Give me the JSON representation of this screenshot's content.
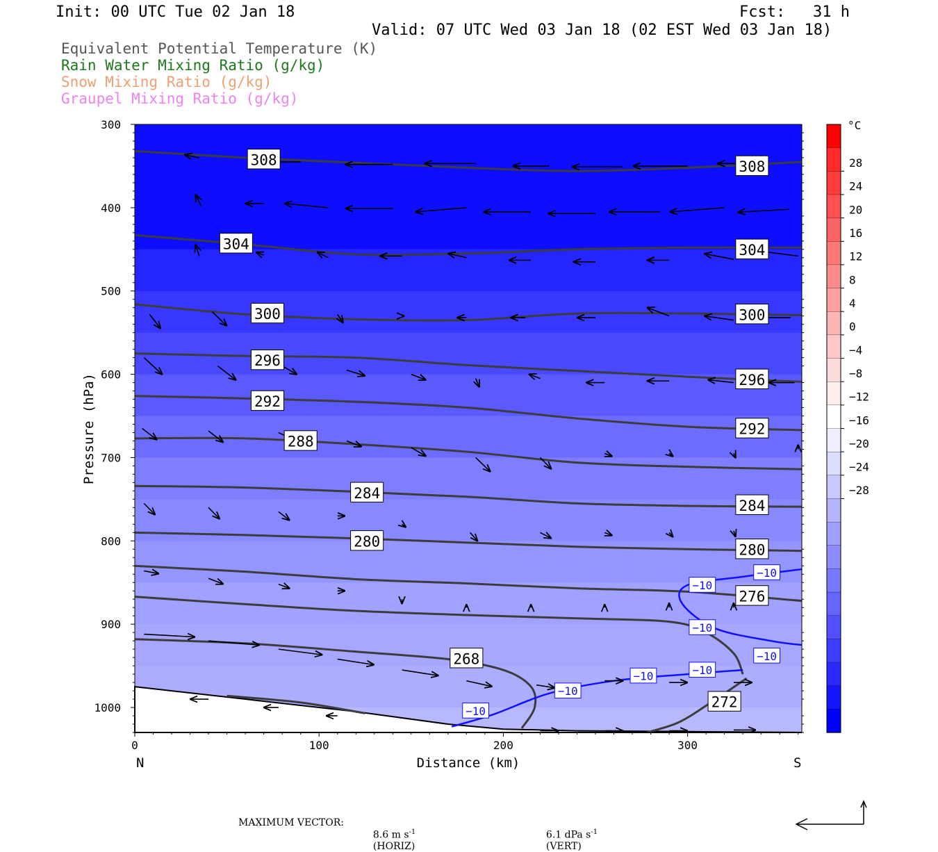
{
  "header": {
    "init": "Init: 00 UTC Tue 02 Jan 18",
    "fcst": "Fcst:   31 h",
    "valid": "Valid: 07 UTC Wed 03 Jan 18 (02 EST Wed 03 Jan 18)"
  },
  "legend": [
    {
      "text": "Equivalent Potential Temperature (K)",
      "color": "#555555"
    },
    {
      "text": "Rain Water Mixing Ratio (g/kg)",
      "color": "#1a7a1a"
    },
    {
      "text": "Snow Mixing Ratio (g/kg)",
      "color": "#f0a070"
    },
    {
      "text": "Graupel Mixing Ratio (g/kg)",
      "color": "#ee82ee"
    }
  ],
  "footer": {
    "max_vector_label": "MAXIMUM VECTOR:",
    "horiz": "8.6 m s",
    "horiz_unit": "(HORIZ)",
    "vert": "6.1 dPa s",
    "vert_unit": "(VERT)",
    "exponent": "-1"
  },
  "chart_data": {
    "type": "contour-cross-section",
    "xlabel": "Distance (km)",
    "ylabel": "Pressure (hPa)",
    "x_left_label": "N",
    "x_right_label": "S",
    "xlim": [
      0,
      362
    ],
    "ylim": [
      1030,
      300
    ],
    "x_ticks": [
      0,
      100,
      200,
      300
    ],
    "y_ticks": [
      300,
      400,
      500,
      600,
      700,
      800,
      900,
      1000
    ],
    "colorbar": {
      "unit": "°C",
      "labels": [
        "28",
        "24",
        "20",
        "16",
        "12",
        "8",
        "4",
        "0",
        "−4",
        "−8",
        "−12",
        "−16",
        "−20",
        "−24",
        "−28"
      ],
      "colors": [
        "#ff0000",
        "#ff2a2a",
        "#ff3c3c",
        "#ff5050",
        "#ff6464",
        "#ff7878",
        "#ff8c8c",
        "#ffa0a0",
        "#ffb4b4",
        "#ffc8c8",
        "#ffdcdc",
        "#ffeeee",
        "#ffffff",
        "#eeeeff",
        "#dcdcff",
        "#c8c8ff",
        "#b4b4ff",
        "#a0a0ff",
        "#8c8cff",
        "#7878ff",
        "#6464ff",
        "#5050ff",
        "#3c3cff",
        "#2828ff",
        "#1414ff",
        "#0000ff"
      ]
    },
    "theta_e_contours": [
      {
        "level": "308",
        "points": [
          [
            0,
            332
          ],
          [
            60,
            340
          ],
          [
            120,
            346
          ],
          [
            180,
            352
          ],
          [
            240,
            356
          ],
          [
            300,
            352
          ],
          [
            362,
            345
          ]
        ]
      },
      {
        "level": "304",
        "points": [
          [
            0,
            433
          ],
          [
            60,
            444
          ],
          [
            120,
            456
          ],
          [
            180,
            455
          ],
          [
            240,
            450
          ],
          [
            300,
            448
          ],
          [
            362,
            448
          ]
        ]
      },
      {
        "level": "300",
        "points": [
          [
            0,
            516
          ],
          [
            60,
            528
          ],
          [
            120,
            534
          ],
          [
            180,
            535
          ],
          [
            240,
            527
          ],
          [
            300,
            527
          ],
          [
            362,
            529
          ]
        ]
      },
      {
        "level": "296",
        "points": [
          [
            0,
            575
          ],
          [
            60,
            578
          ],
          [
            120,
            580
          ],
          [
            180,
            589
          ],
          [
            240,
            596
          ],
          [
            300,
            603
          ],
          [
            362,
            609
          ]
        ]
      },
      {
        "level": "292",
        "points": [
          [
            0,
            626
          ],
          [
            60,
            629
          ],
          [
            120,
            633
          ],
          [
            180,
            640
          ],
          [
            240,
            653
          ],
          [
            300,
            663
          ],
          [
            362,
            667
          ]
        ]
      },
      {
        "level": "288",
        "points": [
          [
            0,
            677
          ],
          [
            60,
            677
          ],
          [
            120,
            684
          ],
          [
            180,
            693
          ],
          [
            240,
            706
          ],
          [
            300,
            711
          ],
          [
            362,
            714
          ]
        ]
      },
      {
        "level": "284",
        "points": [
          [
            0,
            734
          ],
          [
            60,
            736
          ],
          [
            120,
            741
          ],
          [
            180,
            747
          ],
          [
            240,
            755
          ],
          [
            300,
            758
          ],
          [
            362,
            759
          ]
        ]
      },
      {
        "level": "280",
        "points": [
          [
            0,
            790
          ],
          [
            60,
            793
          ],
          [
            120,
            797
          ],
          [
            180,
            802
          ],
          [
            240,
            807
          ],
          [
            300,
            810
          ],
          [
            362,
            812
          ]
        ]
      },
      {
        "level": "276",
        "points": [
          [
            0,
            830
          ],
          [
            60,
            837
          ],
          [
            120,
            846
          ],
          [
            180,
            851
          ],
          [
            240,
            857
          ],
          [
            300,
            861
          ],
          [
            362,
            872
          ]
        ]
      },
      {
        "level": "",
        "points": [
          [
            0,
            867
          ],
          [
            60,
            876
          ],
          [
            120,
            884
          ],
          [
            180,
            889
          ],
          [
            240,
            893
          ],
          [
            290,
            897
          ],
          [
            310,
            910
          ],
          [
            325,
            935
          ],
          [
            330,
            960
          ]
        ]
      },
      {
        "level": "268",
        "points": [
          [
            0,
            918
          ],
          [
            60,
            923
          ],
          [
            120,
            933
          ],
          [
            170,
            942
          ],
          [
            200,
            955
          ],
          [
            215,
            975
          ],
          [
            217,
            1000
          ],
          [
            210,
            1025
          ]
        ]
      },
      {
        "level": "272",
        "points": [
          [
            332,
            965
          ],
          [
            312,
            995
          ],
          [
            295,
            1018
          ],
          [
            278,
            1030
          ]
        ]
      },
      {
        "level": "",
        "points": [
          [
            50,
            986
          ],
          [
            90,
            994
          ],
          [
            125,
            1007
          ]
        ]
      }
    ],
    "temperature_contours": [
      {
        "level": "−10",
        "points": [
          [
            172,
            1023
          ],
          [
            195,
            1008
          ],
          [
            225,
            983
          ],
          [
            260,
            968
          ],
          [
            300,
            960
          ],
          [
            330,
            955
          ]
        ]
      },
      {
        "level": "−10",
        "points": [
          [
            362,
            834
          ],
          [
            330,
            843
          ],
          [
            300,
            853
          ],
          [
            297,
            875
          ],
          [
            315,
            905
          ],
          [
            345,
            920
          ],
          [
            362,
            925
          ]
        ]
      }
    ],
    "temperature_shading_c": [
      {
        "p": 300,
        "t": -37
      },
      {
        "p": 450,
        "t": -33
      },
      {
        "p": 500,
        "t": -30
      },
      {
        "p": 550,
        "t": -27
      },
      {
        "p": 600,
        "t": -24
      },
      {
        "p": 650,
        "t": -21
      },
      {
        "p": 700,
        "t": -18
      },
      {
        "p": 750,
        "t": -16
      },
      {
        "p": 800,
        "t": -14
      },
      {
        "p": 850,
        "t": -12
      },
      {
        "p": 900,
        "t": -11
      },
      {
        "p": 950,
        "t": -10
      },
      {
        "p": 1000,
        "t": -8
      },
      {
        "p": 1030,
        "t": -6
      }
    ],
    "terrain_km_hpa": [
      [
        0,
        975
      ],
      [
        60,
        990
      ],
      [
        120,
        1005
      ],
      [
        170,
        1020
      ],
      [
        200,
        1026
      ],
      [
        240,
        1028
      ],
      [
        300,
        1029
      ],
      [
        362,
        1030
      ]
    ],
    "wind_vectors": [
      {
        "x": 35,
        "p": 340,
        "u": -8,
        "w": 2
      },
      {
        "x": 90,
        "p": 345,
        "u": -20,
        "w": 0
      },
      {
        "x": 140,
        "p": 348,
        "u": -26,
        "w": 0
      },
      {
        "x": 185,
        "p": 347,
        "u": -28,
        "w": 0
      },
      {
        "x": 225,
        "p": 350,
        "u": -20,
        "w": 0
      },
      {
        "x": 265,
        "p": 351,
        "u": -28,
        "w": 0
      },
      {
        "x": 300,
        "p": 350,
        "u": -30,
        "w": 0
      },
      {
        "x": 340,
        "p": 347,
        "u": -24,
        "w": 0
      },
      {
        "x": 36,
        "p": 398,
        "u": -3,
        "w": 8
      },
      {
        "x": 70,
        "p": 395,
        "u": -10,
        "w": 0
      },
      {
        "x": 105,
        "p": 400,
        "u": -24,
        "w": 3
      },
      {
        "x": 140,
        "p": 401,
        "u": -26,
        "w": 0
      },
      {
        "x": 180,
        "p": 400,
        "u": -28,
        "w": -3
      },
      {
        "x": 215,
        "p": 405,
        "u": -26,
        "w": 0
      },
      {
        "x": 250,
        "p": 407,
        "u": -26,
        "w": 0
      },
      {
        "x": 285,
        "p": 405,
        "u": -28,
        "w": 0
      },
      {
        "x": 320,
        "p": 400,
        "u": -30,
        "w": -3
      },
      {
        "x": 355,
        "p": 402,
        "u": -28,
        "w": -2
      },
      {
        "x": 35,
        "p": 458,
        "u": -2,
        "w": 8
      },
      {
        "x": 70,
        "p": 457,
        "u": -4,
        "w": 2
      },
      {
        "x": 105,
        "p": 460,
        "u": -6,
        "w": 4
      },
      {
        "x": 145,
        "p": 458,
        "u": -12,
        "w": 0
      },
      {
        "x": 180,
        "p": 460,
        "u": -10,
        "w": 3
      },
      {
        "x": 215,
        "p": 463,
        "u": -12,
        "w": 0
      },
      {
        "x": 250,
        "p": 465,
        "u": -12,
        "w": 0
      },
      {
        "x": 290,
        "p": 463,
        "u": -12,
        "w": 0
      },
      {
        "x": 325,
        "p": 462,
        "u": -16,
        "w": 4
      },
      {
        "x": 360,
        "p": 458,
        "u": -24,
        "w": 4
      },
      {
        "x": 8,
        "p": 528,
        "u": 6,
        "w": -10
      },
      {
        "x": 42,
        "p": 525,
        "u": 8,
        "w": -10
      },
      {
        "x": 110,
        "p": 528,
        "u": 3,
        "w": -6
      },
      {
        "x": 145,
        "p": 530,
        "u": 1,
        "w": 0
      },
      {
        "x": 180,
        "p": 532,
        "u": -5,
        "w": 0
      },
      {
        "x": 212,
        "p": 532,
        "u": -8,
        "w": 0
      },
      {
        "x": 250,
        "p": 532,
        "u": -10,
        "w": 0
      },
      {
        "x": 290,
        "p": 530,
        "u": -12,
        "w": 6
      },
      {
        "x": 325,
        "p": 535,
        "u": -16,
        "w": 3
      },
      {
        "x": 356,
        "p": 532,
        "u": -18,
        "w": 0
      },
      {
        "x": 5,
        "p": 580,
        "u": 10,
        "w": -12
      },
      {
        "x": 45,
        "p": 590,
        "u": 10,
        "w": -10
      },
      {
        "x": 80,
        "p": 590,
        "u": 8,
        "w": -6
      },
      {
        "x": 115,
        "p": 595,
        "u": 10,
        "w": -4
      },
      {
        "x": 150,
        "p": 600,
        "u": 8,
        "w": -4
      },
      {
        "x": 185,
        "p": 605,
        "u": 2,
        "w": -6
      },
      {
        "x": 220,
        "p": 605,
        "u": -6,
        "w": 3
      },
      {
        "x": 255,
        "p": 610,
        "u": -10,
        "w": 0
      },
      {
        "x": 290,
        "p": 608,
        "u": -12,
        "w": 0
      },
      {
        "x": 325,
        "p": 610,
        "u": -14,
        "w": 2
      },
      {
        "x": 358,
        "p": 610,
        "u": -14,
        "w": 0
      },
      {
        "x": 4,
        "p": 665,
        "u": 8,
        "w": -8
      },
      {
        "x": 40,
        "p": 668,
        "u": 8,
        "w": -8
      },
      {
        "x": 78,
        "p": 670,
        "u": 10,
        "w": -6
      },
      {
        "x": 115,
        "p": 680,
        "u": 8,
        "w": -4
      },
      {
        "x": 150,
        "p": 688,
        "u": 8,
        "w": -6
      },
      {
        "x": 185,
        "p": 700,
        "u": 8,
        "w": -10
      },
      {
        "x": 220,
        "p": 700,
        "u": 6,
        "w": -8
      },
      {
        "x": 255,
        "p": 695,
        "u": 4,
        "w": -2
      },
      {
        "x": 290,
        "p": 695,
        "u": 2,
        "w": -2
      },
      {
        "x": 325,
        "p": 695,
        "u": 1,
        "w": -3
      },
      {
        "x": 360,
        "p": 690,
        "u": 0,
        "w": 3
      },
      {
        "x": 5,
        "p": 755,
        "u": 6,
        "w": -8
      },
      {
        "x": 40,
        "p": 760,
        "u": 6,
        "w": -8
      },
      {
        "x": 78,
        "p": 765,
        "u": 6,
        "w": -6
      },
      {
        "x": 110,
        "p": 770,
        "u": 4,
        "w": 0
      },
      {
        "x": 145,
        "p": 780,
        "u": 2,
        "w": -2
      },
      {
        "x": 182,
        "p": 790,
        "u": 4,
        "w": -6
      },
      {
        "x": 220,
        "p": 790,
        "u": 6,
        "w": -4
      },
      {
        "x": 255,
        "p": 790,
        "u": 4,
        "w": -2
      },
      {
        "x": 290,
        "p": 790,
        "u": 2,
        "w": -3
      },
      {
        "x": 325,
        "p": 788,
        "u": 1,
        "w": -4
      },
      {
        "x": 5,
        "p": 836,
        "u": 8,
        "w": -2
      },
      {
        "x": 40,
        "p": 845,
        "u": 8,
        "w": -4
      },
      {
        "x": 78,
        "p": 852,
        "u": 6,
        "w": -3
      },
      {
        "x": 110,
        "p": 860,
        "u": 4,
        "w": 0
      },
      {
        "x": 145,
        "p": 870,
        "u": 0,
        "w": -3
      },
      {
        "x": 180,
        "p": 880,
        "u": 0,
        "w": 2
      },
      {
        "x": 215,
        "p": 880,
        "u": 0,
        "w": 2
      },
      {
        "x": 255,
        "p": 880,
        "u": 0,
        "w": 2
      },
      {
        "x": 290,
        "p": 880,
        "u": 0,
        "w": 3
      },
      {
        "x": 325,
        "p": 880,
        "u": 0,
        "w": 3
      },
      {
        "x": 5,
        "p": 912,
        "u": 28,
        "w": -2
      },
      {
        "x": 40,
        "p": 920,
        "u": 28,
        "w": -3
      },
      {
        "x": 78,
        "p": 930,
        "u": 24,
        "w": -4
      },
      {
        "x": 110,
        "p": 942,
        "u": 20,
        "w": -4
      },
      {
        "x": 145,
        "p": 955,
        "u": 20,
        "w": -4
      },
      {
        "x": 180,
        "p": 968,
        "u": 14,
        "w": -4
      },
      {
        "x": 218,
        "p": 973,
        "u": 10,
        "w": -2
      },
      {
        "x": 255,
        "p": 968,
        "u": 10,
        "w": 0
      },
      {
        "x": 290,
        "p": 970,
        "u": 10,
        "w": 0
      },
      {
        "x": 325,
        "p": 970,
        "u": 10,
        "w": 0
      },
      {
        "x": 40,
        "p": 990,
        "u": -10,
        "w": 0
      },
      {
        "x": 78,
        "p": 1000,
        "u": -8,
        "w": 0
      },
      {
        "x": 110,
        "p": 1010,
        "u": -6,
        "w": 0
      },
      {
        "x": 220,
        "p": 1028,
        "u": 10,
        "w": 0
      },
      {
        "x": 255,
        "p": 1028,
        "u": 10,
        "w": 0
      },
      {
        "x": 290,
        "p": 1028,
        "u": 10,
        "w": 0
      },
      {
        "x": 325,
        "p": 1027,
        "u": 12,
        "w": 0
      }
    ]
  }
}
